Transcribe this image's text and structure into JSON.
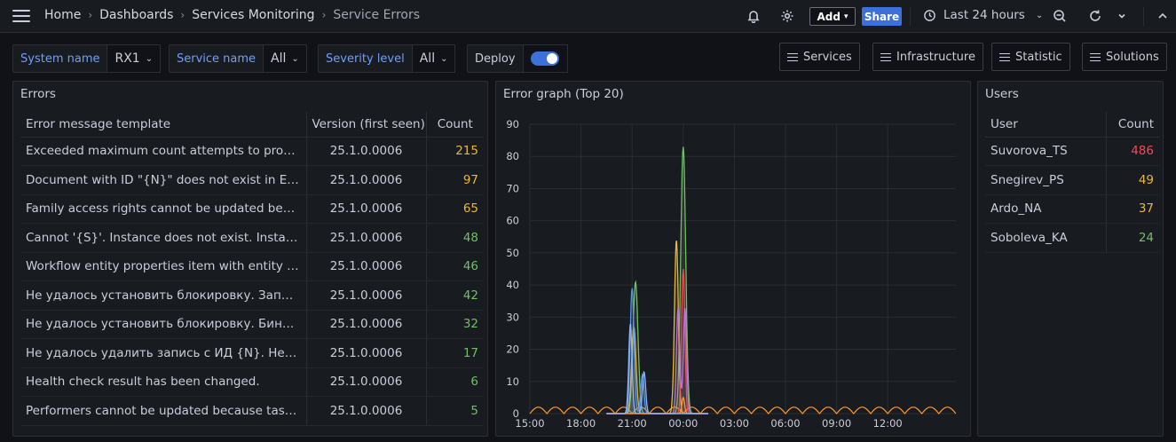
{
  "breadcrumb": {
    "home": "Home",
    "dashboards": "Dashboards",
    "folder": "Services Monitoring",
    "current": "Service Errors"
  },
  "toolbar": {
    "add_label": "Add",
    "share_label": "Share",
    "time_range": "Last 24 hours",
    "icons": [
      "bell-icon",
      "gear-icon",
      "clock-icon",
      "zoom-out-icon",
      "refresh-icon",
      "chevron-up-icon"
    ]
  },
  "variables": {
    "system": {
      "label": "System name",
      "value": "RX1"
    },
    "service": {
      "label": "Service name",
      "value": "All"
    },
    "severity": {
      "label": "Severity level",
      "value": "All"
    },
    "deploy": {
      "label": "Deploy",
      "enabled": true
    }
  },
  "links": {
    "services": "Services",
    "infrastructure": "Infrastructure",
    "statistic": "Statistic",
    "solutions": "Solutions"
  },
  "errors_panel": {
    "title": "Errors",
    "columns": {
      "message": "Error message template",
      "version": "Version (first seen)",
      "count": "Count"
    },
    "rows": [
      {
        "message": "Exceeded maximum count attempts to process ...",
        "version": "25.1.0.0006",
        "count": "215",
        "color": "#eab839"
      },
      {
        "message": "Document with ID \"{N}\" does not exist in ElasticS...",
        "version": "25.1.0.0006",
        "count": "97",
        "color": "#eab839"
      },
      {
        "message": "Family access rights cannot be updated because...",
        "version": "25.1.0.0006",
        "count": "65",
        "color": "#eab839"
      },
      {
        "message": "Cannot '{S}'. Instance does not exist. InstanceId ...",
        "version": "25.1.0.0006",
        "count": "48",
        "color": "#73bf69"
      },
      {
        "message": "Workflow entity properties item with entity ID \"{N...",
        "version": "25.1.0.0006",
        "count": "46",
        "color": "#73bf69"
      },
      {
        "message": "Не удалось установить блокировку. Запись \"{S...",
        "version": "25.1.0.0006",
        "count": "42",
        "color": "#73bf69"
      },
      {
        "message": "Не удалось установить блокировку. Бинарные ...",
        "version": "25.1.0.0006",
        "count": "32",
        "color": "#73bf69"
      },
      {
        "message": "Не удалось удалить запись с ИД {N}. Нельзя уд...",
        "version": "25.1.0.0006",
        "count": "17",
        "color": "#73bf69"
      },
      {
        "message": "Health check result has been changed.",
        "version": "25.1.0.0006",
        "count": "6",
        "color": "#73bf69"
      },
      {
        "message": "Performers cannot be updated because task wit...",
        "version": "25.1.0.0006",
        "count": "5",
        "color": "#73bf69"
      }
    ]
  },
  "users_panel": {
    "title": "Users",
    "columns": {
      "user": "User",
      "count": "Count"
    },
    "rows": [
      {
        "user": "Suvorova_TS",
        "count": "486",
        "color": "#f2495c"
      },
      {
        "user": "Snegirev_PS",
        "count": "49",
        "color": "#eab839"
      },
      {
        "user": "Ardo_NA",
        "count": "37",
        "color": "#eab839"
      },
      {
        "user": "Soboleva_KA",
        "count": "24",
        "color": "#73bf69"
      }
    ]
  },
  "graph_panel": {
    "title": "Error graph (Top 20)"
  },
  "chart_data": {
    "type": "area",
    "title": "Error graph (Top 20)",
    "xlabel": "",
    "ylabel": "",
    "ylim": [
      0,
      90
    ],
    "yticks": [
      0,
      10,
      20,
      30,
      40,
      50,
      60,
      70,
      80,
      90
    ],
    "xlim": [
      15,
      40
    ],
    "xticks": [
      {
        "t": 15,
        "label": "15:00"
      },
      {
        "t": 18,
        "label": "18:00"
      },
      {
        "t": 21,
        "label": "21:00"
      },
      {
        "t": 24,
        "label": "00:00"
      },
      {
        "t": 27,
        "label": "03:00"
      },
      {
        "t": 30,
        "label": "06:00"
      },
      {
        "t": 33,
        "label": "09:00"
      },
      {
        "t": 36,
        "label": "12:00"
      }
    ],
    "grid": true,
    "series": [
      {
        "color": "#73bf69",
        "peaks": [
          {
            "t": 21.2,
            "v": 41,
            "w": 0.45
          },
          {
            "t": 24.0,
            "v": 83,
            "w": 0.45
          }
        ]
      },
      {
        "color": "#eab839",
        "peaks": [
          {
            "t": 21.1,
            "v": 27,
            "w": 0.4
          },
          {
            "t": 23.6,
            "v": 54,
            "w": 0.35
          }
        ]
      },
      {
        "color": "#5794f2",
        "peaks": [
          {
            "t": 21.0,
            "v": 39,
            "w": 0.35
          },
          {
            "t": 21.6,
            "v": 12,
            "w": 0.3
          }
        ]
      },
      {
        "color": "#f2495c",
        "peaks": [
          {
            "t": 24.0,
            "v": 45,
            "w": 0.3
          }
        ]
      },
      {
        "color": "#b877d9",
        "peaks": [
          {
            "t": 23.7,
            "v": 33,
            "w": 0.3
          },
          {
            "t": 24.1,
            "v": 33,
            "w": 0.3
          }
        ]
      },
      {
        "color": "#ff9830",
        "peaks": [
          {
            "t": 24.0,
            "v": 5,
            "w": 0.25
          }
        ]
      },
      {
        "color": "#8ab8ff",
        "peaks": [
          {
            "t": 20.9,
            "v": 28,
            "w": 0.3
          },
          {
            "t": 21.7,
            "v": 13,
            "w": 0.3
          }
        ]
      }
    ],
    "baseline_wave": {
      "color": "#ff9830",
      "amplitude": 2,
      "period": 1
    }
  }
}
